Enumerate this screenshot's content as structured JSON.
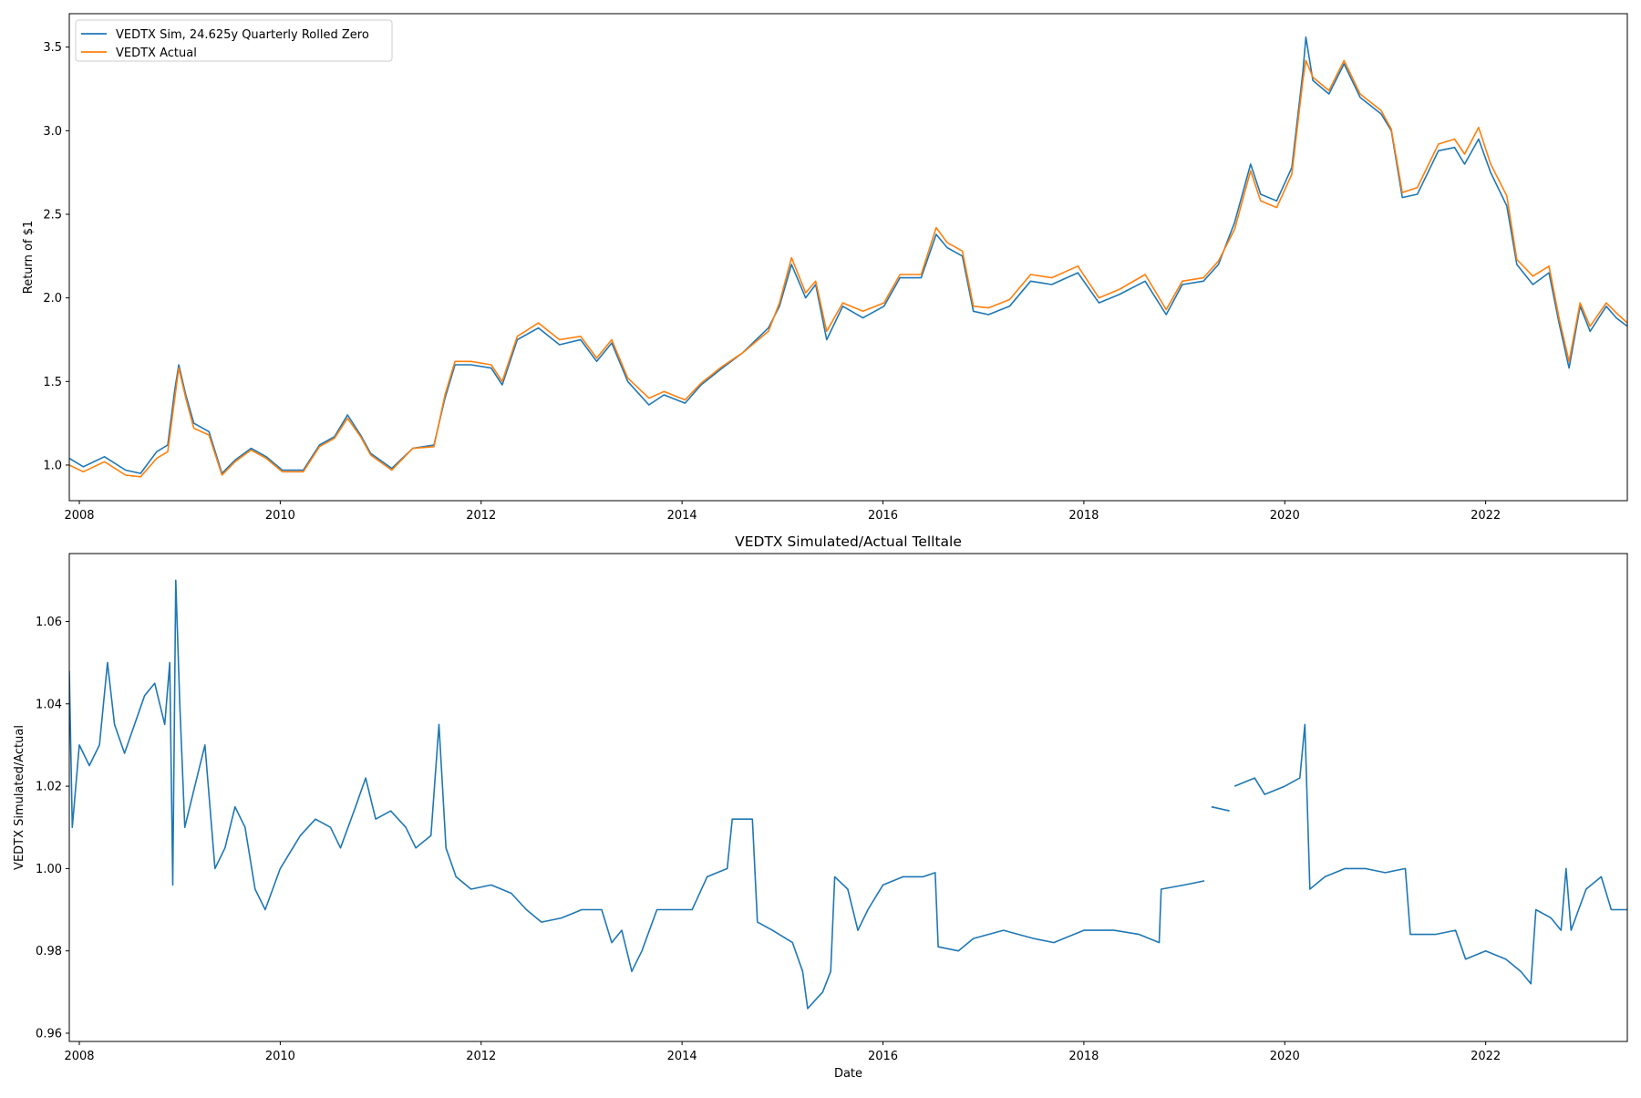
{
  "chart_data": [
    {
      "type": "line",
      "title": "",
      "xlabel": "",
      "ylabel": "Return of $1",
      "xlim": [
        2007.9,
        2023.41
      ],
      "ylim": [
        0.787,
        3.7
      ],
      "xticks": [
        2008,
        2010,
        2012,
        2014,
        2016,
        2018,
        2020,
        2022
      ],
      "xtick_labels": [
        "2008",
        "2010",
        "2012",
        "2014",
        "2016",
        "2018",
        "2020",
        "2022"
      ],
      "yticks": [
        1.0,
        1.5,
        2.0,
        2.5,
        3.0,
        3.5
      ],
      "ytick_labels": [
        "1.0",
        "1.5",
        "2.0",
        "2.5",
        "3.0",
        "3.5"
      ],
      "grid": false,
      "legend_placement": "upper-left",
      "x": [
        2007.9,
        2008.04,
        2008.25,
        2008.46,
        2008.61,
        2008.77,
        2008.88,
        2008.95,
        2008.99,
        2009.06,
        2009.14,
        2009.29,
        2009.42,
        2009.55,
        2009.71,
        2009.86,
        2010.02,
        2010.23,
        2010.39,
        2010.54,
        2010.67,
        2010.8,
        2010.9,
        2011.11,
        2011.32,
        2011.53,
        2011.64,
        2011.74,
        2011.9,
        2012.1,
        2012.21,
        2012.36,
        2012.57,
        2012.78,
        2012.99,
        2013.15,
        2013.3,
        2013.46,
        2013.67,
        2013.82,
        2014.03,
        2014.19,
        2014.4,
        2014.6,
        2014.86,
        2014.97,
        2015.09,
        2015.23,
        2015.33,
        2015.44,
        2015.6,
        2015.8,
        2016.01,
        2016.17,
        2016.38,
        2016.53,
        2016.64,
        2016.79,
        2016.9,
        2017.05,
        2017.26,
        2017.47,
        2017.68,
        2017.94,
        2018.15,
        2018.35,
        2018.61,
        2018.82,
        2018.98,
        2019.19,
        2019.34,
        2019.5,
        2019.66,
        2019.76,
        2019.92,
        2020.07,
        2020.18,
        2020.21,
        2020.28,
        2020.44,
        2020.59,
        2020.75,
        2020.96,
        2021.06,
        2021.17,
        2021.32,
        2021.53,
        2021.69,
        2021.79,
        2021.93,
        2022.05,
        2022.21,
        2022.31,
        2022.47,
        2022.63,
        2022.73,
        2022.83,
        2022.94,
        2023.04,
        2023.2,
        2023.3,
        2023.41
      ],
      "series": [
        {
          "name": "VEDTX Sim, 24.625y Quarterly Rolled Zero",
          "color": "#1f77b4",
          "values": [
            1.04,
            0.99,
            1.05,
            0.97,
            0.95,
            1.08,
            1.12,
            1.45,
            1.6,
            1.42,
            1.25,
            1.2,
            0.95,
            1.03,
            1.1,
            1.05,
            0.97,
            0.97,
            1.12,
            1.17,
            1.3,
            1.18,
            1.07,
            0.98,
            1.1,
            1.12,
            1.4,
            1.6,
            1.6,
            1.58,
            1.48,
            1.75,
            1.82,
            1.72,
            1.75,
            1.62,
            1.73,
            1.5,
            1.36,
            1.42,
            1.37,
            1.48,
            1.58,
            1.67,
            1.82,
            1.95,
            2.2,
            2.0,
            2.08,
            1.75,
            1.95,
            1.88,
            1.95,
            2.12,
            2.12,
            2.38,
            2.3,
            2.25,
            1.92,
            1.9,
            1.95,
            2.1,
            2.08,
            2.15,
            1.97,
            2.02,
            2.1,
            1.9,
            2.08,
            2.1,
            2.2,
            2.45,
            2.8,
            2.62,
            2.58,
            2.78,
            3.35,
            3.56,
            3.3,
            3.22,
            3.4,
            3.2,
            3.1,
            3.0,
            2.6,
            2.62,
            2.88,
            2.9,
            2.8,
            2.95,
            2.75,
            2.55,
            2.2,
            2.08,
            2.15,
            1.85,
            1.58,
            1.95,
            1.8,
            1.95,
            1.88,
            1.83
          ]
        },
        {
          "name": "VEDTX Actual",
          "color": "#ff7f0e",
          "values": [
            1.0,
            0.96,
            1.02,
            0.94,
            0.93,
            1.04,
            1.08,
            1.4,
            1.58,
            1.4,
            1.22,
            1.18,
            0.94,
            1.02,
            1.09,
            1.04,
            0.96,
            0.96,
            1.11,
            1.16,
            1.28,
            1.17,
            1.06,
            0.97,
            1.1,
            1.11,
            1.42,
            1.62,
            1.62,
            1.6,
            1.5,
            1.77,
            1.85,
            1.75,
            1.77,
            1.64,
            1.75,
            1.52,
            1.4,
            1.44,
            1.39,
            1.49,
            1.59,
            1.67,
            1.8,
            1.97,
            2.24,
            2.03,
            2.1,
            1.8,
            1.97,
            1.92,
            1.97,
            2.14,
            2.14,
            2.42,
            2.33,
            2.28,
            1.95,
            1.94,
            1.99,
            2.14,
            2.12,
            2.19,
            2.0,
            2.05,
            2.14,
            1.93,
            2.1,
            2.12,
            2.22,
            2.41,
            2.76,
            2.58,
            2.54,
            2.74,
            3.3,
            3.42,
            3.32,
            3.24,
            3.42,
            3.22,
            3.12,
            3.01,
            2.63,
            2.66,
            2.92,
            2.95,
            2.86,
            3.02,
            2.8,
            2.61,
            2.23,
            2.13,
            2.19,
            1.88,
            1.62,
            1.97,
            1.83,
            1.97,
            1.91,
            1.85
          ]
        }
      ]
    },
    {
      "type": "line",
      "title": "VEDTX Simulated/Actual Telltale",
      "xlabel": "Date",
      "ylabel": "VEDTX Simulated/Actual",
      "xlim": [
        2007.9,
        2023.41
      ],
      "ylim": [
        0.958,
        1.0765
      ],
      "xticks": [
        2008,
        2010,
        2012,
        2014,
        2016,
        2018,
        2020,
        2022
      ],
      "xtick_labels": [
        "2008",
        "2010",
        "2012",
        "2014",
        "2016",
        "2018",
        "2020",
        "2022"
      ],
      "yticks": [
        0.96,
        0.98,
        1.0,
        1.02,
        1.04,
        1.06
      ],
      "ytick_labels": [
        "0.96",
        "0.98",
        "1.00",
        "1.02",
        "1.04",
        "1.06"
      ],
      "grid": false,
      "x": [
        2007.9,
        2007.93,
        2008.0,
        2008.1,
        2008.2,
        2008.28,
        2008.35,
        2008.45,
        2008.55,
        2008.65,
        2008.75,
        2008.85,
        2008.9,
        2008.93,
        2008.96,
        2009.0,
        2009.05,
        2009.15,
        2009.25,
        2009.35,
        2009.45,
        2009.55,
        2009.65,
        2009.75,
        2009.85,
        2010.0,
        2010.2,
        2010.35,
        2010.5,
        2010.6,
        2010.75,
        2010.85,
        2010.95,
        2011.1,
        2011.25,
        2011.35,
        2011.5,
        2011.58,
        2011.65,
        2011.75,
        2011.9,
        2012.1,
        2012.3,
        2012.45,
        2012.6,
        2012.8,
        2013.0,
        2013.2,
        2013.3,
        2013.4,
        2013.5,
        2013.6,
        2013.75,
        2013.9,
        2014.1,
        2014.25,
        2014.45,
        2014.5,
        2014.7,
        2014.75,
        2014.9,
        2015.1,
        2015.2,
        2015.25,
        2015.4,
        2015.48,
        2015.52,
        2015.65,
        2015.75,
        2015.85,
        2016.0,
        2016.2,
        2016.4,
        2016.52,
        2016.55,
        2016.75,
        2016.9,
        2017.2,
        2017.5,
        2017.7,
        2018.0,
        2018.3,
        2018.55,
        2018.75,
        2018.77,
        2019.0,
        2019.2,
        2019.24,
        2019.27,
        2019.45,
        2019.48,
        2019.5,
        2019.7,
        2019.8,
        2020.0,
        2020.15,
        2020.2,
        2020.25,
        2020.4,
        2020.6,
        2020.8,
        2021.0,
        2021.2,
        2021.25,
        2021.5,
        2021.7,
        2021.8,
        2022.0,
        2022.2,
        2022.35,
        2022.45,
        2022.5,
        2022.65,
        2022.75,
        2022.8,
        2022.85,
        2023.0,
        2023.15,
        2023.25,
        2023.41
      ],
      "series": [
        {
          "color": "#1f77b4",
          "values": [
            1.048,
            1.01,
            1.03,
            1.025,
            1.03,
            1.05,
            1.035,
            1.028,
            1.035,
            1.042,
            1.045,
            1.035,
            1.05,
            0.996,
            1.07,
            1.04,
            1.01,
            1.02,
            1.03,
            1.0,
            1.005,
            1.015,
            1.01,
            0.995,
            0.99,
            1.0,
            1.008,
            1.012,
            1.01,
            1.005,
            1.015,
            1.022,
            1.012,
            1.014,
            1.01,
            1.005,
            1.008,
            1.035,
            1.005,
            0.998,
            0.995,
            0.996,
            0.994,
            0.99,
            0.987,
            0.988,
            0.99,
            0.99,
            0.982,
            0.985,
            0.975,
            0.98,
            0.99,
            0.99,
            0.99,
            0.998,
            1.0,
            1.012,
            1.012,
            0.987,
            0.985,
            0.982,
            0.975,
            0.966,
            0.97,
            0.975,
            0.998,
            0.995,
            0.985,
            0.99,
            0.996,
            0.998,
            0.998,
            0.999,
            0.981,
            0.98,
            0.983,
            0.985,
            0.983,
            0.982,
            0.985,
            0.985,
            0.984,
            0.982,
            0.995,
            0.996,
            0.997,
            null,
            1.015,
            1.014,
            null,
            1.02,
            1.022,
            1.018,
            1.02,
            1.022,
            1.035,
            0.995,
            0.998,
            1.0,
            1.0,
            0.999,
            1.0,
            0.984,
            0.984,
            0.985,
            0.978,
            0.98,
            0.978,
            0.975,
            0.972,
            0.99,
            0.988,
            0.985,
            1.0,
            0.985,
            0.995,
            0.998,
            0.99,
            0.99
          ]
        }
      ]
    }
  ]
}
